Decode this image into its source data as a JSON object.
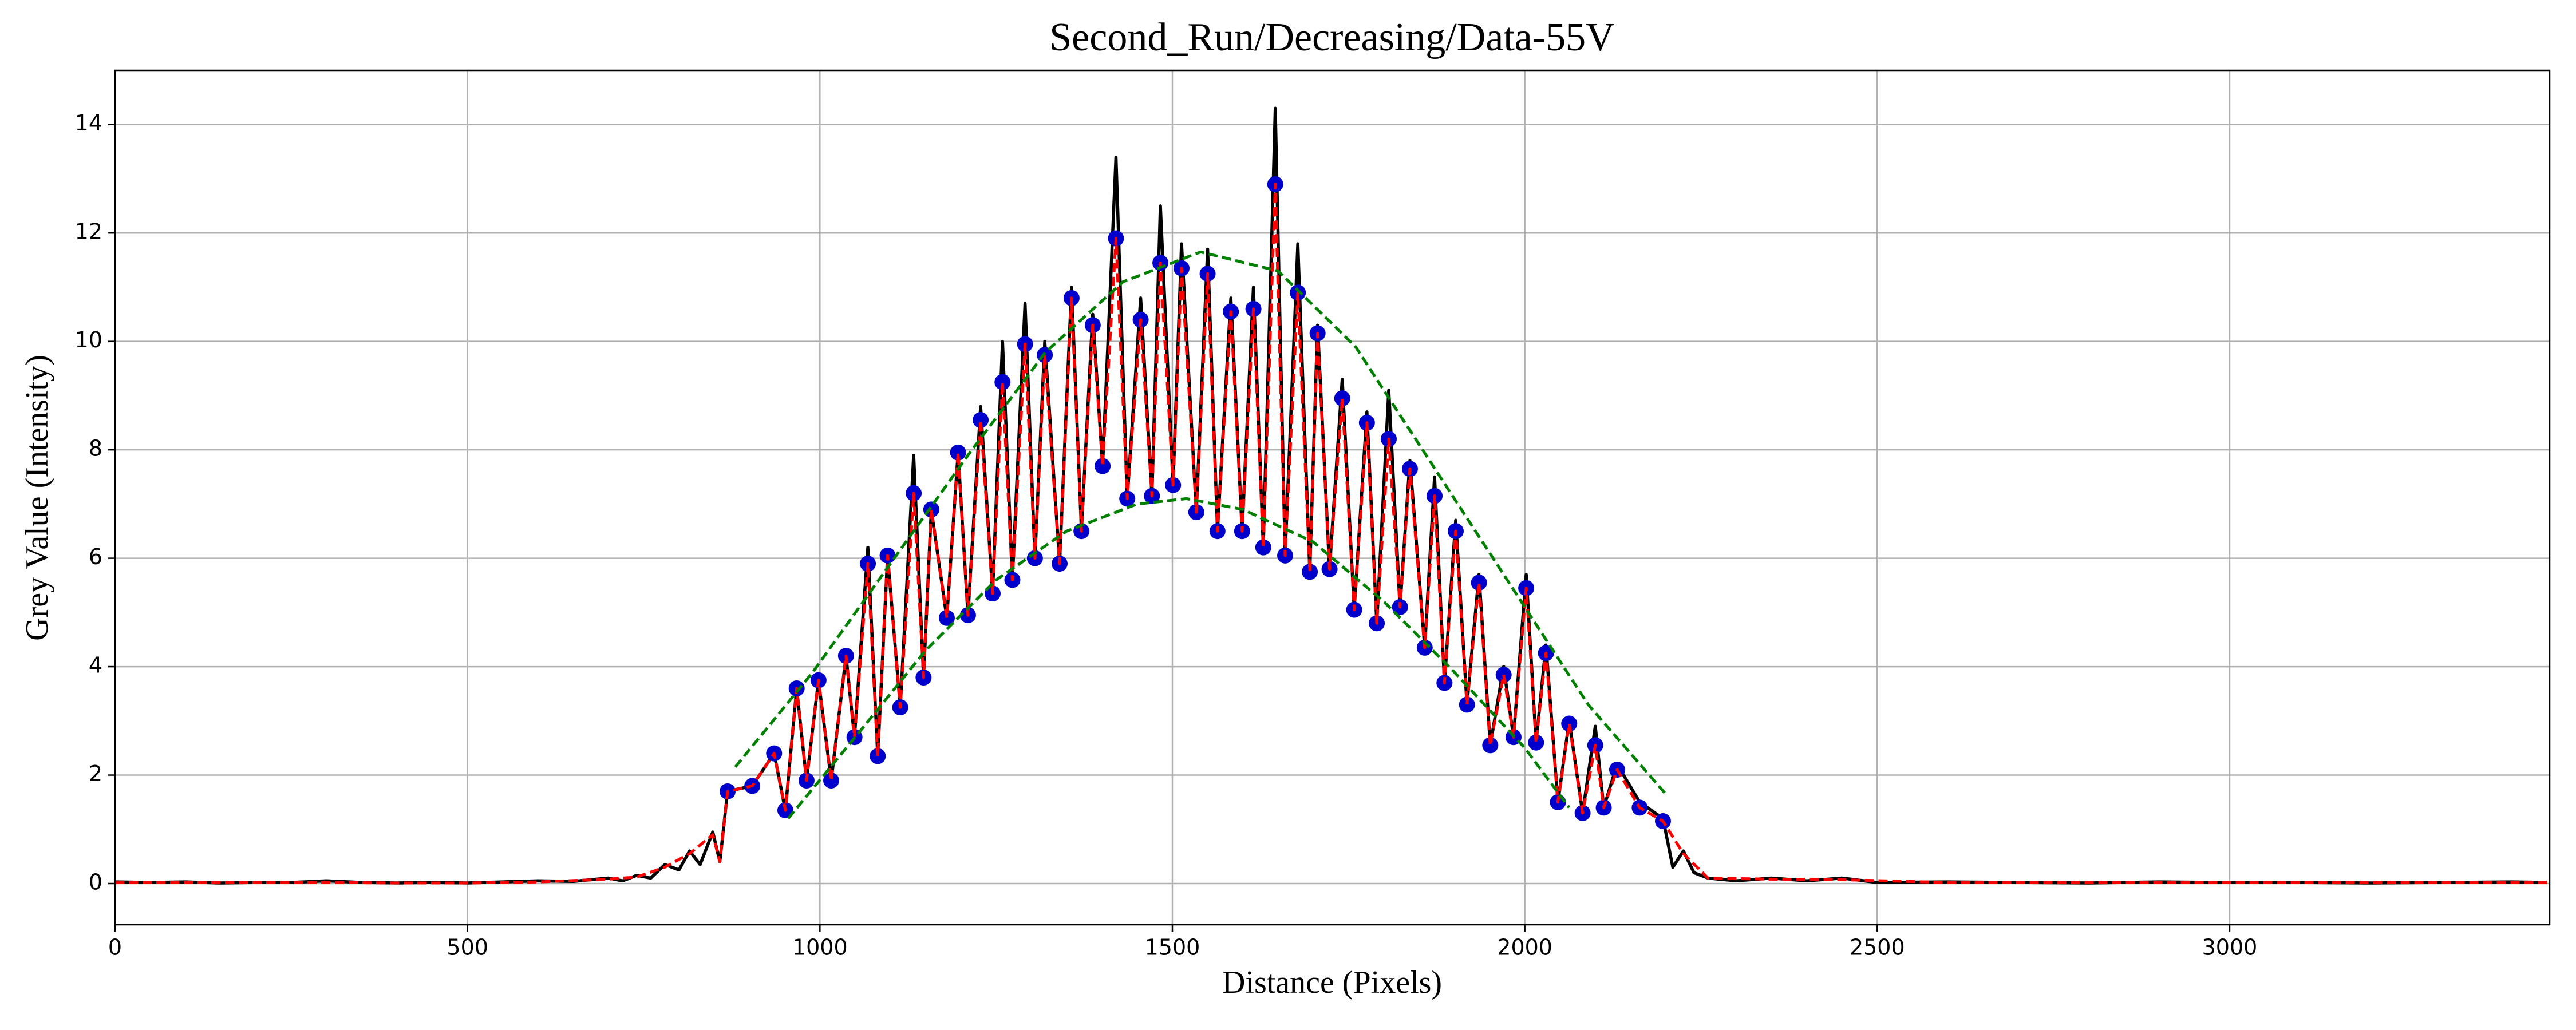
{
  "chart_data": {
    "type": "line",
    "title": "Second_Run/Decreasing/Data-55V",
    "xlabel": "Distance (Pixels)",
    "ylabel": "Grey Value (Intensity)",
    "xlim": [
      0,
      3454
    ],
    "ylim": [
      -0.76,
      15.0
    ],
    "xticks": [
      0,
      500,
      1000,
      1500,
      2000,
      2500,
      3000
    ],
    "yticks": [
      0,
      2,
      4,
      6,
      8,
      10,
      12,
      14
    ],
    "grid": true,
    "series": [
      {
        "type": "line",
        "color": "#000000",
        "dash": false,
        "x": [
          0,
          50,
          100,
          150,
          200,
          250,
          300,
          350,
          400,
          450,
          500,
          550,
          600,
          650,
          700,
          720,
          740,
          760,
          780,
          800,
          815,
          830,
          848,
          858,
          869,
          904,
          935,
          951,
          967,
          981,
          998,
          1016,
          1037,
          1049,
          1068,
          1082,
          1096,
          1114,
          1133,
          1147,
          1158,
          1180,
          1196,
          1210,
          1228,
          1245,
          1259,
          1273,
          1291,
          1305,
          1319,
          1340,
          1357,
          1371,
          1387,
          1401,
          1420,
          1436,
          1455,
          1471,
          1483,
          1501,
          1513,
          1534,
          1550,
          1564,
          1583,
          1599,
          1615,
          1629,
          1646,
          1660,
          1678,
          1695,
          1706,
          1723,
          1741,
          1758,
          1776,
          1790,
          1807,
          1823,
          1837,
          1858,
          1872,
          1886,
          1902,
          1918,
          1935,
          1951,
          1970,
          1984,
          2002,
          2016,
          2030,
          2047,
          2063,
          2082,
          2100,
          2112,
          2131,
          2163,
          2196,
          2210,
          2225,
          2240,
          2260,
          2300,
          2350,
          2400,
          2450,
          2500,
          2600,
          2700,
          2800,
          2900,
          3000,
          3100,
          3200,
          3300,
          3400,
          3450
        ],
        "values": [
          0.03,
          0.02,
          0.03,
          0.01,
          0.02,
          0.02,
          0.05,
          0.02,
          0.01,
          0.02,
          0.01,
          0.03,
          0.05,
          0.04,
          0.1,
          0.05,
          0.15,
          0.1,
          0.35,
          0.25,
          0.6,
          0.35,
          0.95,
          0.4,
          1.7,
          1.8,
          2.4,
          1.35,
          3.6,
          1.9,
          3.75,
          1.9,
          4.2,
          2.7,
          6.2,
          2.35,
          6.05,
          3.25,
          7.9,
          3.8,
          6.9,
          4.9,
          7.95,
          4.95,
          8.8,
          5.35,
          10.0,
          5.6,
          10.7,
          6.0,
          10.0,
          5.9,
          11.0,
          6.5,
          10.5,
          7.7,
          13.4,
          7.1,
          10.8,
          7.15,
          12.5,
          7.35,
          11.8,
          6.85,
          11.7,
          6.5,
          10.8,
          6.5,
          11.0,
          6.2,
          14.3,
          6.05,
          11.8,
          5.75,
          10.3,
          5.8,
          9.3,
          5.05,
          8.7,
          4.8,
          9.1,
          5.1,
          7.8,
          4.35,
          7.5,
          3.7,
          6.7,
          3.3,
          5.7,
          2.55,
          4.0,
          2.7,
          5.7,
          2.6,
          4.4,
          1.5,
          3.0,
          1.3,
          2.9,
          1.4,
          2.2,
          1.5,
          1.2,
          0.3,
          0.6,
          0.2,
          0.1,
          0.05,
          0.1,
          0.05,
          0.1,
          0.02,
          0.03,
          0.02,
          0.01,
          0.03,
          0.02,
          0.02,
          0.01,
          0.02,
          0.03,
          0.02
        ]
      },
      {
        "type": "scatter",
        "color": "#0000cc",
        "x": [
          869,
          904,
          935,
          951,
          967,
          981,
          998,
          1016,
          1037,
          1049,
          1068,
          1082,
          1096,
          1114,
          1133,
          1147,
          1158,
          1180,
          1196,
          1210,
          1228,
          1245,
          1259,
          1273,
          1291,
          1305,
          1319,
          1340,
          1357,
          1371,
          1387,
          1401,
          1420,
          1436,
          1455,
          1471,
          1483,
          1501,
          1513,
          1534,
          1550,
          1564,
          1583,
          1599,
          1615,
          1629,
          1646,
          1660,
          1678,
          1695,
          1706,
          1723,
          1741,
          1758,
          1776,
          1790,
          1807,
          1823,
          1837,
          1858,
          1872,
          1886,
          1902,
          1918,
          1935,
          1951,
          1970,
          1984,
          2002,
          2016,
          2030,
          2047,
          2063,
          2082,
          2100,
          2112,
          2131,
          2163,
          2196
        ],
        "values": [
          1.7,
          1.8,
          2.4,
          1.35,
          3.6,
          1.9,
          3.75,
          1.9,
          4.2,
          2.7,
          5.9,
          2.35,
          6.05,
          3.25,
          7.2,
          3.8,
          6.9,
          4.9,
          7.95,
          4.95,
          8.55,
          5.35,
          9.25,
          5.6,
          9.95,
          6.0,
          9.75,
          5.9,
          10.8,
          6.5,
          10.3,
          7.7,
          11.9,
          7.1,
          10.4,
          7.15,
          11.45,
          7.35,
          11.35,
          6.85,
          11.25,
          6.5,
          10.55,
          6.5,
          10.6,
          6.2,
          12.9,
          6.05,
          10.9,
          5.75,
          10.15,
          5.8,
          8.95,
          5.05,
          8.5,
          4.8,
          8.2,
          5.1,
          7.65,
          4.35,
          7.15,
          3.7,
          6.5,
          3.3,
          5.55,
          2.55,
          3.85,
          2.7,
          5.45,
          2.6,
          4.25,
          1.5,
          2.95,
          1.3,
          2.55,
          1.4,
          2.1,
          1.4,
          1.15
        ]
      },
      {
        "type": "line",
        "color": "#ff0000",
        "dash": true,
        "x": [
          0,
          100,
          200,
          300,
          400,
          500,
          600,
          700,
          740,
          780,
          815,
          848,
          858,
          869,
          904,
          935,
          951,
          967,
          981,
          998,
          1016,
          1037,
          1049,
          1068,
          1082,
          1096,
          1114,
          1133,
          1147,
          1158,
          1180,
          1196,
          1210,
          1228,
          1245,
          1259,
          1273,
          1291,
          1305,
          1319,
          1340,
          1357,
          1371,
          1387,
          1401,
          1420,
          1436,
          1455,
          1471,
          1483,
          1501,
          1513,
          1534,
          1550,
          1564,
          1583,
          1599,
          1615,
          1629,
          1646,
          1660,
          1678,
          1695,
          1706,
          1723,
          1741,
          1758,
          1776,
          1790,
          1807,
          1823,
          1837,
          1858,
          1872,
          1886,
          1902,
          1918,
          1935,
          1951,
          1970,
          1984,
          2002,
          2016,
          2030,
          2047,
          2063,
          2082,
          2100,
          2112,
          2131,
          2163,
          2196,
          2225,
          2260,
          2350,
          2450,
          2600,
          2800,
          3000,
          3200,
          3454
        ],
        "values": [
          0.02,
          0.02,
          0.02,
          0.02,
          0.01,
          0.01,
          0.03,
          0.08,
          0.12,
          0.3,
          0.55,
          0.9,
          0.4,
          1.7,
          1.8,
          2.4,
          1.35,
          3.6,
          1.9,
          3.75,
          1.9,
          4.2,
          2.7,
          5.9,
          2.35,
          6.05,
          3.25,
          7.2,
          3.8,
          6.9,
          4.9,
          7.95,
          4.95,
          8.55,
          5.35,
          9.25,
          5.6,
          9.95,
          6.0,
          9.75,
          5.9,
          10.8,
          6.5,
          10.3,
          7.7,
          11.9,
          7.1,
          10.4,
          7.15,
          11.45,
          7.35,
          11.35,
          6.85,
          11.25,
          6.5,
          10.55,
          6.5,
          10.6,
          6.2,
          12.9,
          6.05,
          10.9,
          5.75,
          10.15,
          5.8,
          8.95,
          5.05,
          8.5,
          4.8,
          8.2,
          5.1,
          7.65,
          4.35,
          7.15,
          3.7,
          6.5,
          3.3,
          5.55,
          2.55,
          3.85,
          2.7,
          5.45,
          2.6,
          4.25,
          1.5,
          2.95,
          1.3,
          2.55,
          1.4,
          2.1,
          1.4,
          1.15,
          0.55,
          0.1,
          0.08,
          0.07,
          0.02,
          0.02,
          0.02,
          0.02,
          0.02
        ]
      },
      {
        "type": "line",
        "color": "#008000",
        "dash": true,
        "x": [
          880,
          990,
          1100,
          1210,
          1320,
          1430,
          1540,
          1650,
          1760,
          1870,
          1980,
          2090,
          2200
        ],
        "values": [
          2.15,
          3.9,
          5.9,
          7.9,
          9.8,
          11.1,
          11.65,
          11.3,
          9.9,
          7.7,
          5.5,
          3.3,
          1.65
        ]
      },
      {
        "type": "line",
        "color": "#008000",
        "dash": true,
        "x": [
          955,
          1050,
          1150,
          1250,
          1350,
          1450,
          1520,
          1600,
          1700,
          1800,
          1900,
          2000,
          2063
        ],
        "values": [
          1.2,
          2.7,
          4.3,
          5.6,
          6.5,
          7.0,
          7.1,
          6.9,
          6.3,
          5.2,
          3.9,
          2.5,
          1.4
        ]
      }
    ]
  }
}
